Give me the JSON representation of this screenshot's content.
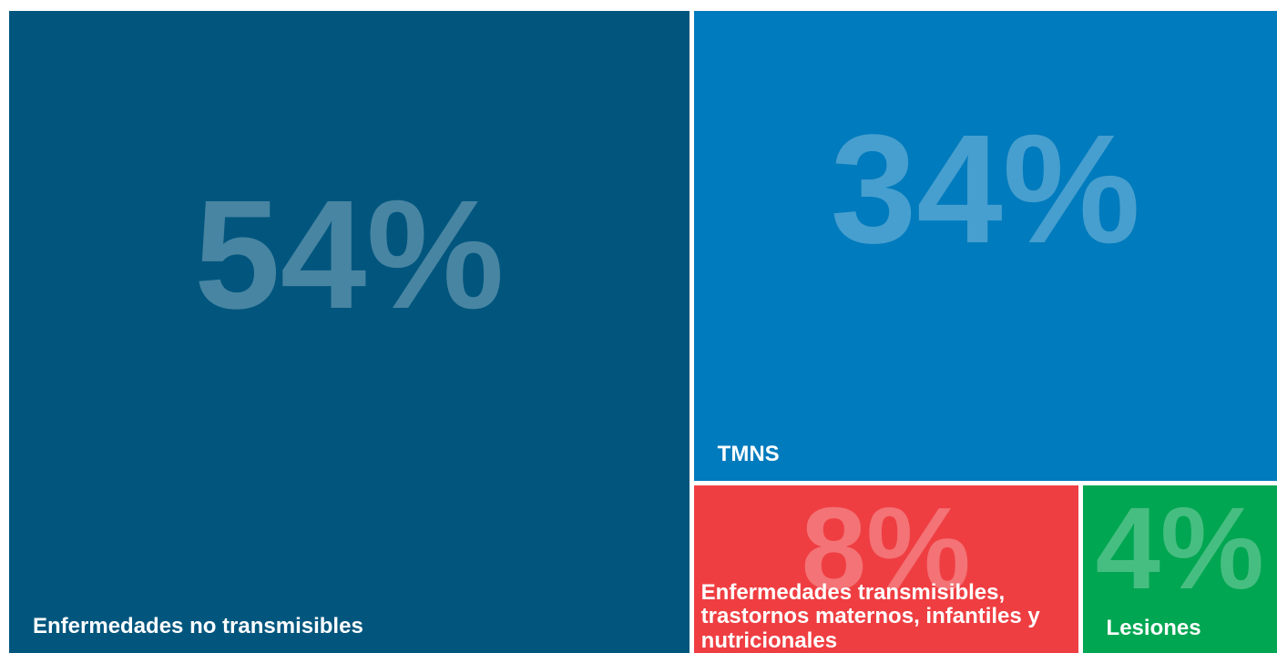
{
  "chart_data": {
    "type": "treemap",
    "categories": [
      "Enfermedades no transmisibles",
      "TMNS",
      "Enfermedades transmisibles, trastornos maternos, infantiles y nutricionales",
      "Lesiones"
    ],
    "values": [
      54,
      34,
      8,
      4
    ],
    "value_labels": [
      "54%",
      "34%",
      "8%",
      "4%"
    ],
    "colors": [
      "#02567e",
      "#007bbd",
      "#ef3e42",
      "#00a651"
    ]
  }
}
